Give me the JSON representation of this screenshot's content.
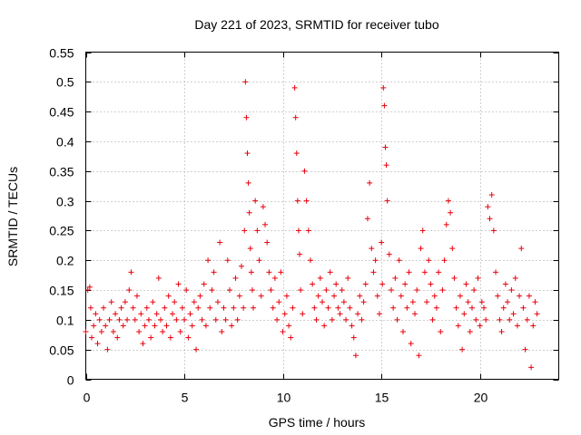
{
  "chart_data": {
    "type": "scatter",
    "title": "Day 221 of 2023, SRMTID for receiver tubo",
    "xlabel": "GPS time / hours",
    "ylabel": "SRMTID / TECUs",
    "xlim": [
      0,
      24
    ],
    "ylim": [
      0,
      0.55
    ],
    "xticks": [
      0,
      5,
      10,
      15,
      20
    ],
    "xtick_labels": [
      "0",
      "5",
      "10",
      "15",
      "20"
    ],
    "yticks": [
      0,
      0.05,
      0.1,
      0.15,
      0.2,
      0.25,
      0.3,
      0.35,
      0.4,
      0.45,
      0.5,
      0.55
    ],
    "ytick_labels": [
      "0",
      "0.05",
      "0.1",
      "0.15",
      "0.2",
      "0.25",
      "0.3",
      "0.35",
      "0.4",
      "0.45",
      "0.5",
      "0.55"
    ],
    "grid": true,
    "marker": "+",
    "color": "#e8000b",
    "series": [
      {
        "name": "SRMTID",
        "x": [
          0.0,
          0.1,
          0.2,
          0.25,
          0.3,
          0.4,
          0.5,
          0.6,
          0.7,
          0.8,
          0.9,
          1.0,
          1.1,
          1.2,
          1.3,
          1.4,
          1.5,
          1.6,
          1.7,
          1.8,
          1.9,
          2.0,
          2.1,
          2.2,
          2.3,
          2.4,
          2.5,
          2.6,
          2.7,
          2.8,
          2.9,
          3.0,
          3.1,
          3.2,
          3.3,
          3.4,
          3.5,
          3.6,
          3.7,
          3.8,
          3.9,
          4.0,
          4.1,
          4.2,
          4.3,
          4.4,
          4.5,
          4.6,
          4.7,
          4.8,
          4.9,
          5.0,
          5.1,
          5.2,
          5.3,
          5.4,
          5.5,
          5.6,
          5.7,
          5.8,
          5.9,
          6.0,
          6.1,
          6.2,
          6.3,
          6.4,
          6.5,
          6.6,
          6.7,
          6.8,
          6.9,
          7.0,
          7.1,
          7.2,
          7.3,
          7.4,
          7.5,
          7.6,
          7.7,
          7.8,
          7.9,
          8.0,
          8.05,
          8.1,
          8.15,
          8.2,
          8.25,
          8.3,
          8.35,
          8.4,
          8.45,
          8.5,
          8.6,
          8.7,
          8.8,
          8.9,
          9.0,
          9.1,
          9.2,
          9.3,
          9.4,
          9.5,
          9.6,
          9.7,
          9.8,
          9.9,
          10.0,
          10.1,
          10.2,
          10.3,
          10.4,
          10.5,
          10.6,
          10.65,
          10.7,
          10.75,
          10.8,
          10.85,
          10.9,
          11.0,
          11.1,
          11.2,
          11.3,
          11.4,
          11.5,
          11.6,
          11.7,
          11.8,
          11.9,
          12.0,
          12.1,
          12.2,
          12.3,
          12.4,
          12.5,
          12.6,
          12.7,
          12.8,
          12.9,
          13.0,
          13.1,
          13.2,
          13.3,
          13.4,
          13.5,
          13.6,
          13.7,
          13.8,
          13.9,
          14.0,
          14.1,
          14.2,
          14.3,
          14.4,
          14.5,
          14.6,
          14.7,
          14.8,
          14.9,
          15.0,
          15.05,
          15.1,
          15.15,
          15.2,
          15.25,
          15.3,
          15.4,
          15.5,
          15.6,
          15.7,
          15.8,
          15.9,
          16.0,
          16.1,
          16.2,
          16.3,
          16.4,
          16.5,
          16.6,
          16.7,
          16.8,
          16.9,
          17.0,
          17.1,
          17.2,
          17.3,
          17.4,
          17.5,
          17.6,
          17.7,
          17.8,
          17.9,
          18.0,
          18.1,
          18.2,
          18.3,
          18.4,
          18.5,
          18.6,
          18.7,
          18.8,
          18.9,
          19.0,
          19.1,
          19.2,
          19.3,
          19.4,
          19.5,
          19.6,
          19.7,
          19.8,
          19.9,
          20.0,
          20.1,
          20.2,
          20.3,
          20.4,
          20.5,
          20.6,
          20.7,
          20.8,
          20.9,
          21.0,
          21.1,
          21.2,
          21.3,
          21.4,
          21.5,
          21.6,
          21.7,
          21.8,
          21.9,
          22.0,
          22.1,
          22.2,
          22.3,
          22.4,
          22.5,
          22.6,
          22.7,
          22.8,
          22.9
        ],
        "y": [
          0.08,
          0.15,
          0.155,
          0.12,
          0.07,
          0.09,
          0.11,
          0.06,
          0.1,
          0.08,
          0.12,
          0.09,
          0.05,
          0.1,
          0.13,
          0.08,
          0.11,
          0.07,
          0.1,
          0.12,
          0.09,
          0.13,
          0.1,
          0.15,
          0.18,
          0.12,
          0.1,
          0.14,
          0.08,
          0.11,
          0.06,
          0.09,
          0.12,
          0.1,
          0.07,
          0.13,
          0.09,
          0.11,
          0.17,
          0.1,
          0.08,
          0.12,
          0.09,
          0.14,
          0.07,
          0.11,
          0.13,
          0.1,
          0.16,
          0.08,
          0.12,
          0.1,
          0.15,
          0.07,
          0.11,
          0.09,
          0.13,
          0.05,
          0.12,
          0.14,
          0.1,
          0.16,
          0.09,
          0.2,
          0.12,
          0.15,
          0.18,
          0.1,
          0.13,
          0.23,
          0.08,
          0.12,
          0.1,
          0.2,
          0.15,
          0.09,
          0.12,
          0.17,
          0.1,
          0.14,
          0.19,
          0.12,
          0.25,
          0.5,
          0.44,
          0.38,
          0.33,
          0.28,
          0.22,
          0.18,
          0.15,
          0.12,
          0.3,
          0.25,
          0.2,
          0.14,
          0.29,
          0.26,
          0.23,
          0.18,
          0.15,
          0.12,
          0.17,
          0.1,
          0.13,
          0.18,
          0.08,
          0.11,
          0.14,
          0.09,
          0.07,
          0.12,
          0.49,
          0.44,
          0.38,
          0.3,
          0.25,
          0.21,
          0.15,
          0.11,
          0.35,
          0.3,
          0.25,
          0.2,
          0.16,
          0.12,
          0.1,
          0.14,
          0.17,
          0.13,
          0.09,
          0.15,
          0.12,
          0.18,
          0.1,
          0.14,
          0.16,
          0.12,
          0.11,
          0.15,
          0.13,
          0.1,
          0.17,
          0.12,
          0.09,
          0.07,
          0.04,
          0.11,
          0.14,
          0.1,
          0.13,
          0.16,
          0.27,
          0.33,
          0.22,
          0.18,
          0.2,
          0.14,
          0.11,
          0.23,
          0.16,
          0.49,
          0.46,
          0.39,
          0.36,
          0.3,
          0.21,
          0.15,
          0.12,
          0.17,
          0.1,
          0.2,
          0.14,
          0.08,
          0.16,
          0.12,
          0.18,
          0.06,
          0.13,
          0.11,
          0.15,
          0.04,
          0.22,
          0.25,
          0.18,
          0.13,
          0.2,
          0.16,
          0.1,
          0.14,
          0.12,
          0.18,
          0.08,
          0.15,
          0.2,
          0.26,
          0.3,
          0.28,
          0.22,
          0.17,
          0.12,
          0.09,
          0.14,
          0.05,
          0.11,
          0.16,
          0.13,
          0.08,
          0.12,
          0.15,
          0.1,
          0.17,
          0.09,
          0.13,
          0.12,
          0.1,
          0.29,
          0.27,
          0.31,
          0.25,
          0.18,
          0.14,
          0.1,
          0.08,
          0.12,
          0.16,
          0.13,
          0.1,
          0.15,
          0.11,
          0.17,
          0.09,
          0.14,
          0.22,
          0.12,
          0.05,
          0.1,
          0.14,
          0.02,
          0.09,
          0.13,
          0.11
        ]
      }
    ]
  }
}
